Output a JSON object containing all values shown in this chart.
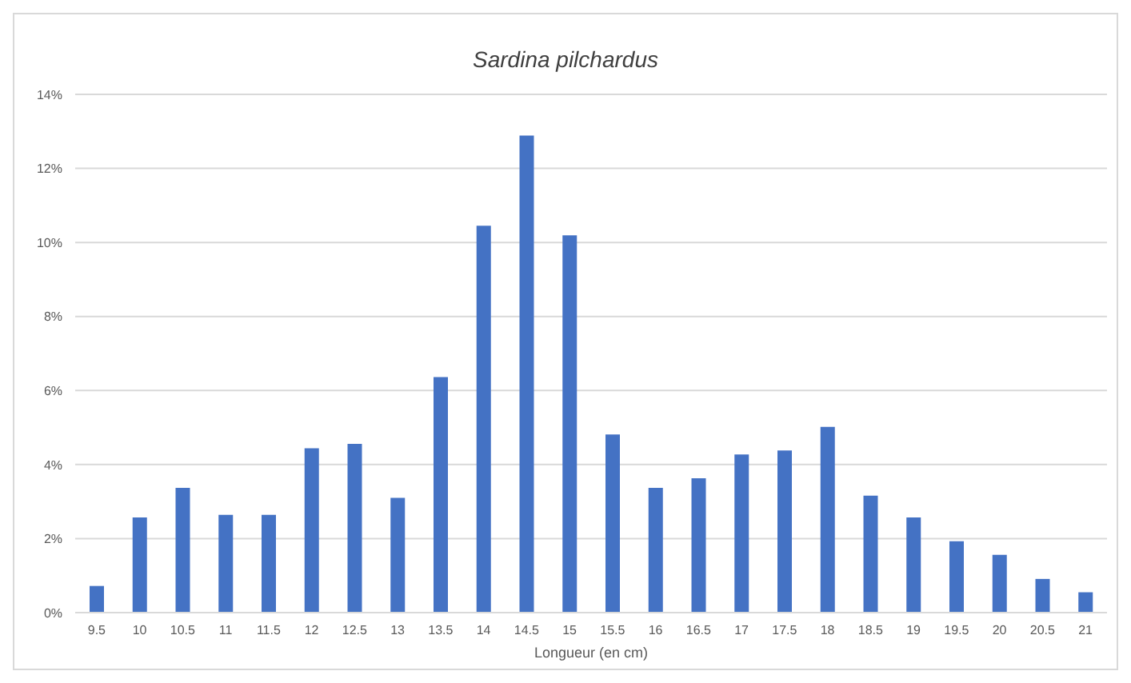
{
  "chart_data": {
    "type": "bar",
    "title": "Sardina pilchardus",
    "xlabel": "Longueur (en cm)",
    "categories": [
      "9.5",
      "10",
      "10.5",
      "11",
      "11.5",
      "12",
      "12.5",
      "13",
      "13.5",
      "14",
      "14.5",
      "15",
      "15.5",
      "16",
      "16.5",
      "17",
      "17.5",
      "18",
      "18.5",
      "19",
      "19.5",
      "20",
      "20.5",
      "21"
    ],
    "values": [
      0.72,
      2.57,
      3.37,
      2.64,
      2.64,
      4.44,
      4.56,
      3.1,
      6.36,
      10.45,
      12.89,
      10.19,
      4.81,
      3.37,
      3.63,
      4.27,
      4.38,
      5.02,
      3.16,
      2.57,
      1.93,
      1.56,
      0.91,
      0.55
    ],
    "color": "#4472c4",
    "ylim": [
      0,
      14
    ],
    "yticks": [
      {
        "value": 0,
        "label": "0%"
      },
      {
        "value": 2,
        "label": "2%"
      },
      {
        "value": 4,
        "label": "4%"
      },
      {
        "value": 6,
        "label": "6%"
      },
      {
        "value": 8,
        "label": "8%"
      },
      {
        "value": 10,
        "label": "10%"
      },
      {
        "value": 12,
        "label": "12%"
      },
      {
        "value": 14,
        "label": "14%"
      }
    ],
    "grid": "y",
    "legend": false
  }
}
